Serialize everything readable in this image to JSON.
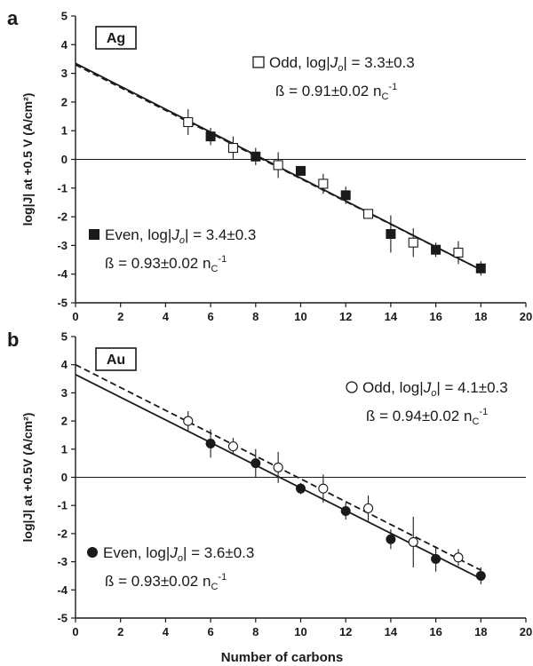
{
  "chart_data": [
    {
      "type": "scatter",
      "panel": "a",
      "metal_label": "Ag",
      "xlabel": "",
      "ylabel": "log|J| at +0.5 V (A/cm²)",
      "xlim": [
        0,
        20
      ],
      "ylim": [
        -5,
        5
      ],
      "xticks": [
        "0",
        "2",
        "4",
        "6",
        "8",
        "10",
        "12",
        "14",
        "16",
        "18",
        "20"
      ],
      "yticks": [
        "5",
        "4",
        "3",
        "2",
        "1",
        "0",
        "-1",
        "-2",
        "-3",
        "-4",
        "-5"
      ],
      "grid": false,
      "series": [
        {
          "name": "Odd",
          "marker": "open-square",
          "x": [
            5,
            7,
            9,
            11,
            13,
            15,
            17
          ],
          "y": [
            1.3,
            0.4,
            -0.2,
            -0.85,
            -1.9,
            -2.9,
            -3.25
          ],
          "err": [
            0.45,
            0.4,
            0.45,
            0.35,
            0.15,
            0.5,
            0.4
          ],
          "fit": {
            "style": "dashed",
            "x": [
              0,
              18
            ],
            "y": [
              3.3,
              -3.85
            ]
          },
          "annotation_1": "Odd, log|Jo| = 3.3±0.3",
          "annotation_2": "ß = 0.91±0.02 nC-1"
        },
        {
          "name": "Even",
          "marker": "filled-square",
          "x": [
            6,
            8,
            10,
            12,
            14,
            16,
            18
          ],
          "y": [
            0.8,
            0.1,
            -0.4,
            -1.25,
            -2.6,
            -3.15,
            -3.8
          ],
          "err": [
            0.3,
            0.3,
            0.15,
            0.3,
            0.65,
            0.25,
            0.25
          ],
          "fit": {
            "style": "solid",
            "x": [
              0,
              18
            ],
            "y": [
              3.35,
              -3.85
            ]
          },
          "annotation_1": "Even, log|Jo| = 3.4±0.3",
          "annotation_2": "ß = 0.93±0.02 nC-1"
        }
      ]
    },
    {
      "type": "scatter",
      "panel": "b",
      "metal_label": "Au",
      "xlabel": "Number of carbons",
      "ylabel": "log|J| at +0.5V (A/cm²)",
      "xlim": [
        0,
        20
      ],
      "ylim": [
        -5,
        5
      ],
      "xticks": [
        "0",
        "2",
        "4",
        "6",
        "8",
        "10",
        "12",
        "14",
        "16",
        "18",
        "20"
      ],
      "yticks": [
        "5",
        "4",
        "3",
        "2",
        "1",
        "0",
        "-1",
        "-2",
        "-3",
        "-4",
        "-5"
      ],
      "grid": false,
      "series": [
        {
          "name": "Odd",
          "marker": "open-circle",
          "x": [
            5,
            7,
            9,
            11,
            13,
            15,
            17
          ],
          "y": [
            2.0,
            1.1,
            0.35,
            -0.4,
            -1.1,
            -2.3,
            -2.85
          ],
          "err": [
            0.35,
            0.3,
            0.55,
            0.5,
            0.45,
            0.9,
            0.3
          ],
          "fit": {
            "style": "dashed",
            "x": [
              0,
              18
            ],
            "y": [
              4.0,
              -3.3
            ]
          },
          "annotation_1": "Odd, log|Jo| = 4.1±0.3",
          "annotation_2": "ß = 0.94±0.02 nC-1"
        },
        {
          "name": "Even",
          "marker": "filled-circle",
          "x": [
            6,
            8,
            10,
            12,
            14,
            16,
            18
          ],
          "y": [
            1.2,
            0.5,
            -0.4,
            -1.2,
            -2.2,
            -2.9,
            -3.5
          ],
          "err": [
            0.5,
            0.5,
            0.2,
            0.3,
            0.35,
            0.45,
            0.3
          ],
          "fit": {
            "style": "solid",
            "x": [
              0,
              18
            ],
            "y": [
              3.65,
              -3.6
            ]
          },
          "annotation_1": "Even, log|Jo| = 3.6±0.3",
          "annotation_2": "ß = 0.93±0.02 nC-1"
        }
      ]
    }
  ]
}
